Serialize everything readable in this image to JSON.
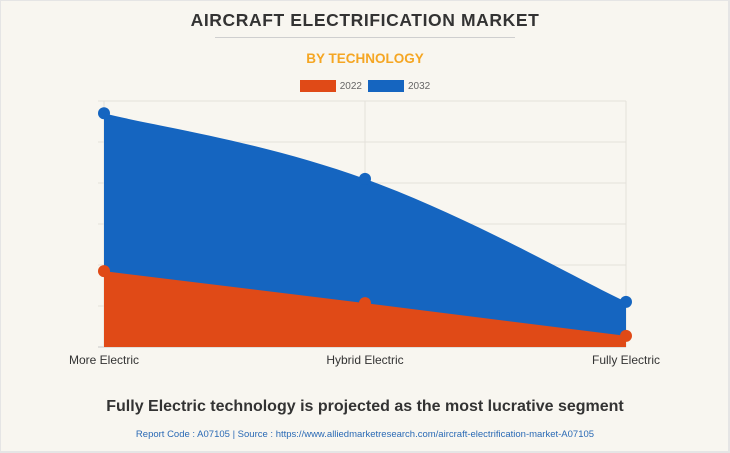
{
  "header": {
    "title": "AIRCRAFT ELECTRIFICATION MARKET",
    "subtitle": "BY TECHNOLOGY"
  },
  "legend": [
    {
      "label": "2022",
      "color": "#e04a17"
    },
    {
      "label": "2032",
      "color": "#1565c0"
    }
  ],
  "chart_data": {
    "type": "area",
    "title": "AIRCRAFT ELECTRIFICATION MARKET",
    "subtitle": "BY TECHNOLOGY",
    "categories": [
      "More Electric",
      "Hybrid Electric",
      "Fully Electric"
    ],
    "series": [
      {
        "name": "2032",
        "color": "#1565c0",
        "smooth": true,
        "values": [
          5.7,
          4.1,
          1.1
        ]
      },
      {
        "name": "2022",
        "color": "#e04a17",
        "smooth": false,
        "values": [
          1.85,
          1.07,
          0.27
        ]
      }
    ],
    "xlabel": "",
    "ylabel": "",
    "ylim": [
      0,
      6
    ],
    "y_ticks_labeled": false,
    "grid": true,
    "legend_position": "top-center",
    "note": "Values are relative units estimated from gridlines (no y-axis labels shown)"
  },
  "footer": {
    "headline": "Fully Electric technology is projected as the most lucrative segment",
    "source": "Report Code : A07105  |  Source : https://www.alliedmarketresearch.com/aircraft-electrification-market-A07105"
  }
}
